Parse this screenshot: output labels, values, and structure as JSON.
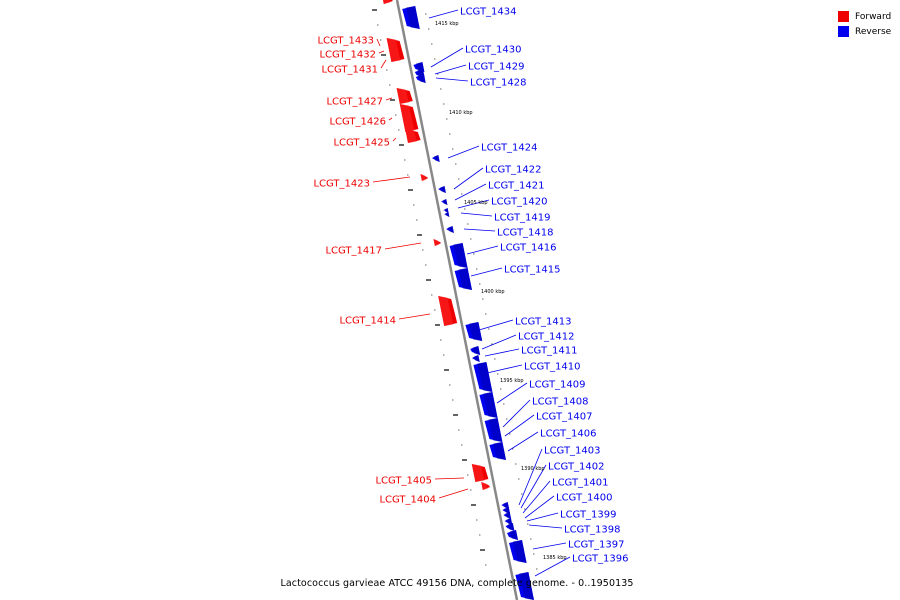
{
  "colors": {
    "forward": "#ee0000",
    "reverse": "#0000ee",
    "axis": "#888888"
  },
  "legend": [
    {
      "label": "Forward",
      "color": "#ee0000"
    },
    {
      "label": "Reverse",
      "color": "#0000ee"
    }
  ],
  "caption": "Lactococcus garvieae ATCC 49156 DNA, complete genome. - 0..1950135",
  "kbp_marks": [
    "1415 kbp",
    "1410 kbp",
    "1405 kbp",
    "1400 kbp",
    "1395 kbp",
    "1390 kbp",
    "1385 kbp"
  ],
  "forward_genes": [
    "LCGT_1433",
    "LCGT_1432",
    "LCGT_1431",
    "LCGT_1427",
    "LCGT_1426",
    "LCGT_1425",
    "LCGT_1423",
    "LCGT_1417",
    "LCGT_1414",
    "LCGT_1405",
    "LCGT_1404"
  ],
  "reverse_genes": [
    "LCGT_1434",
    "LCGT_1430",
    "LCGT_1429",
    "LCGT_1428",
    "LCGT_1424",
    "LCGT_1422",
    "LCGT_1421",
    "LCGT_1420",
    "LCGT_1419",
    "LCGT_1418",
    "LCGT_1416",
    "LCGT_1415",
    "LCGT_1413",
    "LCGT_1412",
    "LCGT_1411",
    "LCGT_1410",
    "LCGT_1409",
    "LCGT_1408",
    "LCGT_1407",
    "LCGT_1406",
    "LCGT_1403",
    "LCGT_1402",
    "LCGT_1401",
    "LCGT_1400",
    "LCGT_1399",
    "LCGT_1398",
    "LCGT_1397",
    "LCGT_1396"
  ]
}
